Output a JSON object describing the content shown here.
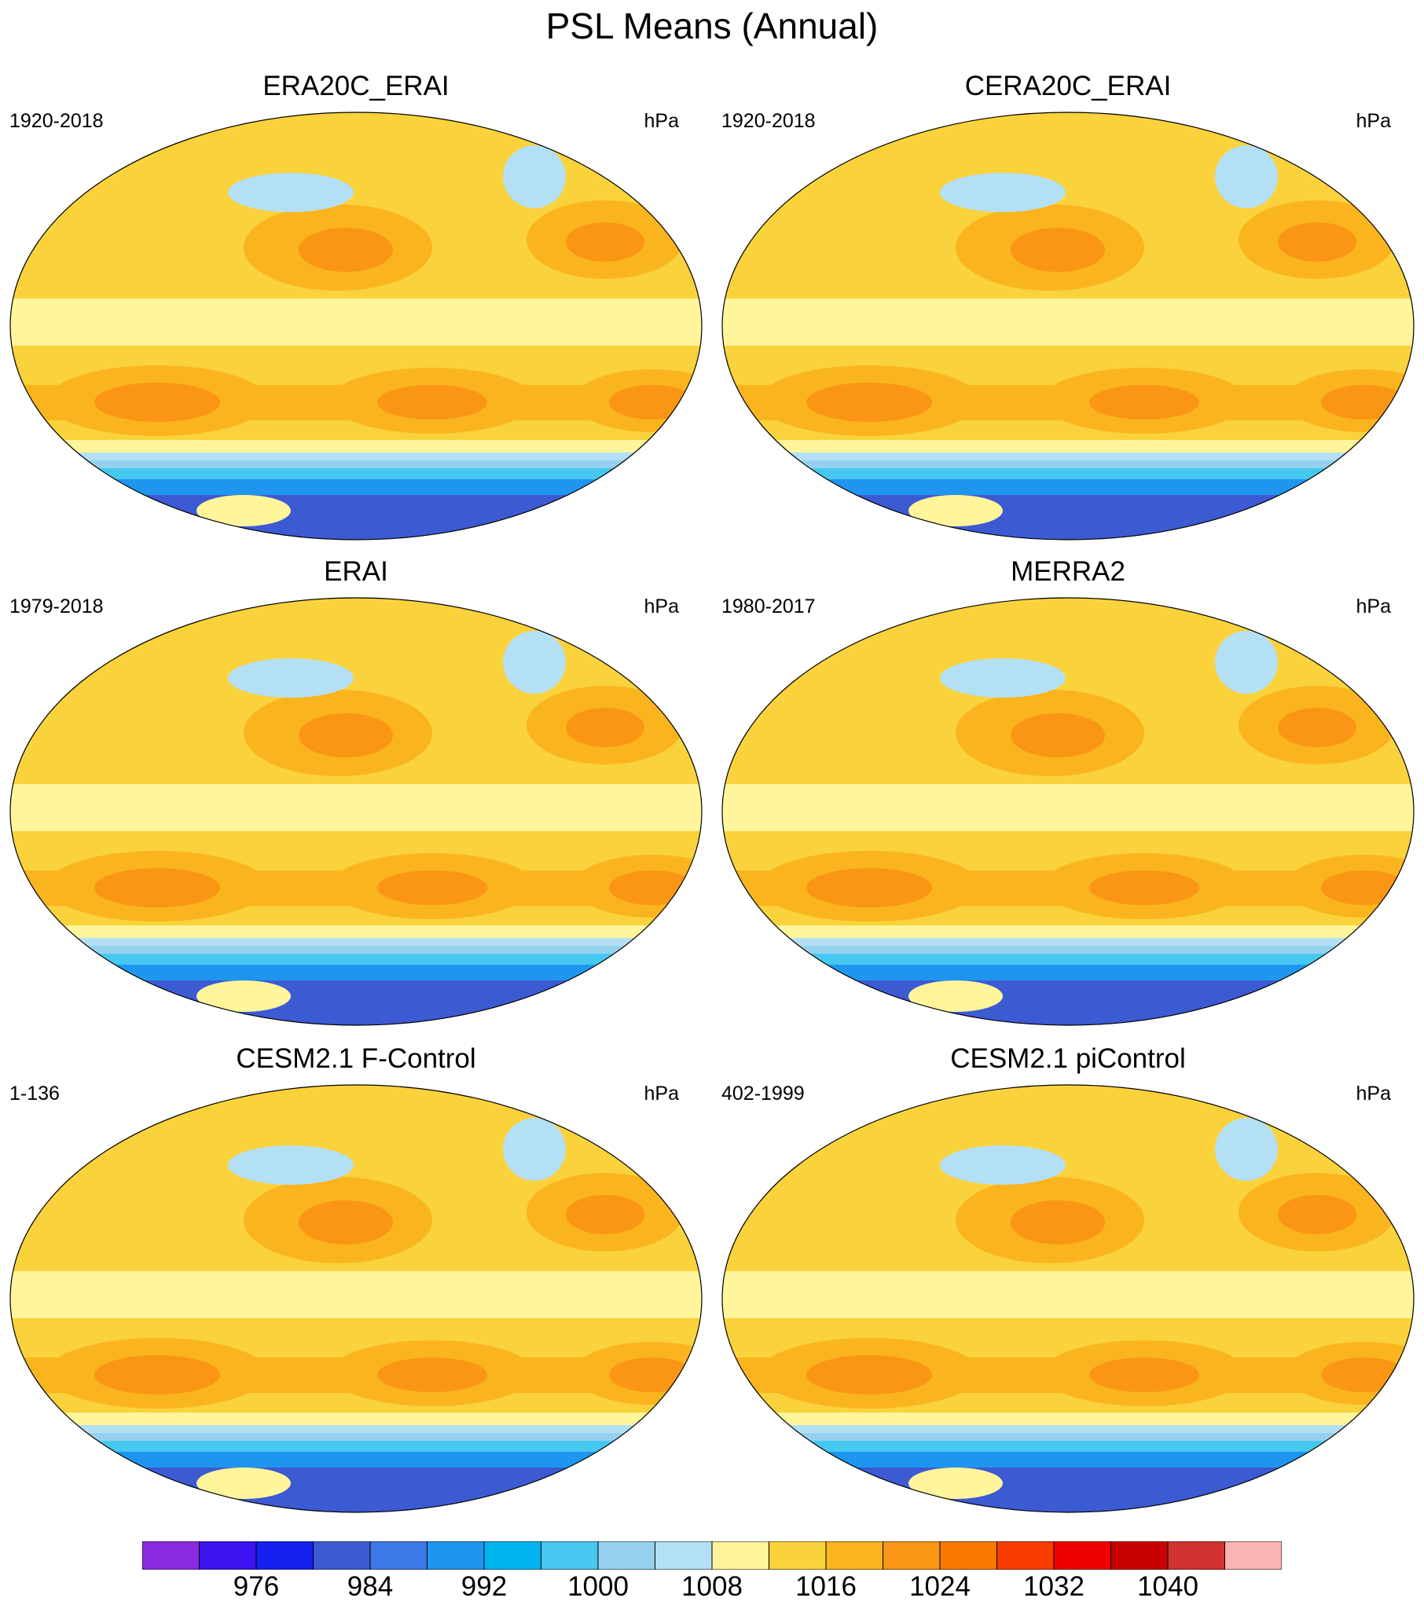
{
  "title": "PSL Means (Annual)",
  "colorbar": {
    "colors": [
      "#8a2be2",
      "#3c14f0",
      "#1420f0",
      "#3c5ad2",
      "#3c78e6",
      "#1e96f0",
      "#00b4f0",
      "#46c8f0",
      "#96d2f0",
      "#b4e0f5",
      "#fff59b",
      "#fad23c",
      "#fab41e",
      "#fa9614",
      "#fa7800",
      "#fa3c00",
      "#f00000",
      "#c80000",
      "#d23232",
      "#fab4b4"
    ],
    "labels": [
      "976",
      "984",
      "992",
      "1000",
      "1008",
      "1016",
      "1024",
      "1032",
      "1040"
    ]
  },
  "panels": [
    {
      "title": "ERA20C_ERAI",
      "years": "1920-2018",
      "units": "hPa"
    },
    {
      "title": "CERA20C_ERAI",
      "years": "1920-2018",
      "units": "hPa"
    },
    {
      "title": "ERAI",
      "years": "1979-2018",
      "units": "hPa"
    },
    {
      "title": "MERRA2",
      "years": "1980-2017",
      "units": "hPa"
    },
    {
      "title": "CESM2.1 F-Control",
      "years": "1-136",
      "units": "hPa"
    },
    {
      "title": "CESM2.1 piControl",
      "years": "402-1999",
      "units": "hPa"
    }
  ]
}
